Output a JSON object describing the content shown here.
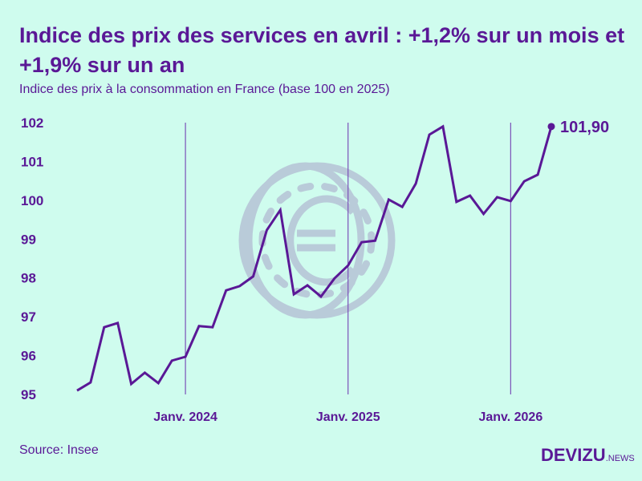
{
  "title": "Indice des prix des services en avril : +1,2% sur un mois et +1,9% sur un an",
  "subtitle": "Indice des prix à la consommation en France (base 100 en 2025)",
  "source": "Source: Insee",
  "logo": {
    "main": "DEVIZU",
    "suffix": "NEWS"
  },
  "colors": {
    "background": "#cffcee",
    "line": "#5a1896",
    "watermark": "#b9cbd9"
  },
  "watermark_icon": "euro-coin-icon",
  "chart_data": {
    "type": "line",
    "title": "Indice des prix des services en avril : +1,2% sur un mois et +1,9% sur un an",
    "subtitle": "Indice des prix à la consommation en France (base 100 en 2025)",
    "xlabel": "",
    "ylabel": "",
    "x_start": "2023-05",
    "x_end": "2026-04",
    "frequency": "monthly",
    "ylim": [
      95,
      102
    ],
    "yticks": [
      "95",
      "96",
      "97",
      "98",
      "99",
      "100",
      "101",
      "102"
    ],
    "xticks": [
      {
        "label": "Janv. 2024",
        "month": "2024-01"
      },
      {
        "label": "Janv. 2025",
        "month": "2025-01"
      },
      {
        "label": "Janv. 2026",
        "month": "2026-01"
      }
    ],
    "grid": "vertical lines at xticks",
    "values": [
      95.1,
      95.31,
      96.73,
      96.84,
      95.27,
      95.56,
      95.29,
      95.87,
      95.97,
      96.76,
      96.73,
      97.68,
      97.79,
      98.04,
      99.23,
      99.75,
      97.58,
      97.81,
      97.52,
      97.99,
      98.32,
      98.92,
      98.96,
      100.02,
      99.83,
      100.43,
      101.69,
      101.9,
      99.96,
      100.12,
      99.65,
      100.08,
      99.98,
      100.49,
      100.66,
      101.9
    ],
    "last_label": "101,90"
  }
}
